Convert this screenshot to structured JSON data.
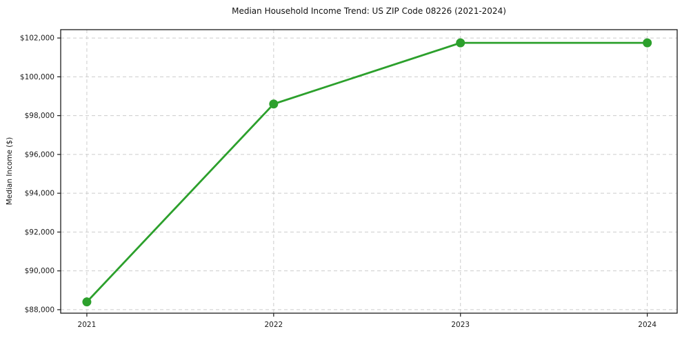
{
  "chart_data": {
    "type": "line",
    "title": "Median Household Income Trend: US ZIP Code 08226 (2021-2024)",
    "xlabel": "",
    "ylabel": "Median Income ($)",
    "x": [
      2021,
      2022,
      2023,
      2024
    ],
    "series": [
      {
        "name": "Median Household Income",
        "values": [
          88400,
          98600,
          101750,
          101750
        ]
      }
    ],
    "xticks": [
      2021,
      2022,
      2023,
      2024
    ],
    "xtick_labels": [
      "2021",
      "2022",
      "2023",
      "2024"
    ],
    "yticks": [
      88000,
      90000,
      92000,
      94000,
      96000,
      98000,
      100000,
      102000
    ],
    "ytick_labels": [
      "$88,000",
      "$90,000",
      "$92,000",
      "$94,000",
      "$96,000",
      "$98,000",
      "$100,000",
      "$102,000"
    ],
    "xlim": [
      2020.86,
      2024.16
    ],
    "ylim": [
      87820,
      102430
    ],
    "grid": true,
    "grid_style": "dashed",
    "legend": "none",
    "line_color": "#2ca02c",
    "marker_color": "#2ca02c",
    "grid_color": "#cccccc",
    "spine_color": "#1a1a1a",
    "background_color": "#ffffff"
  }
}
